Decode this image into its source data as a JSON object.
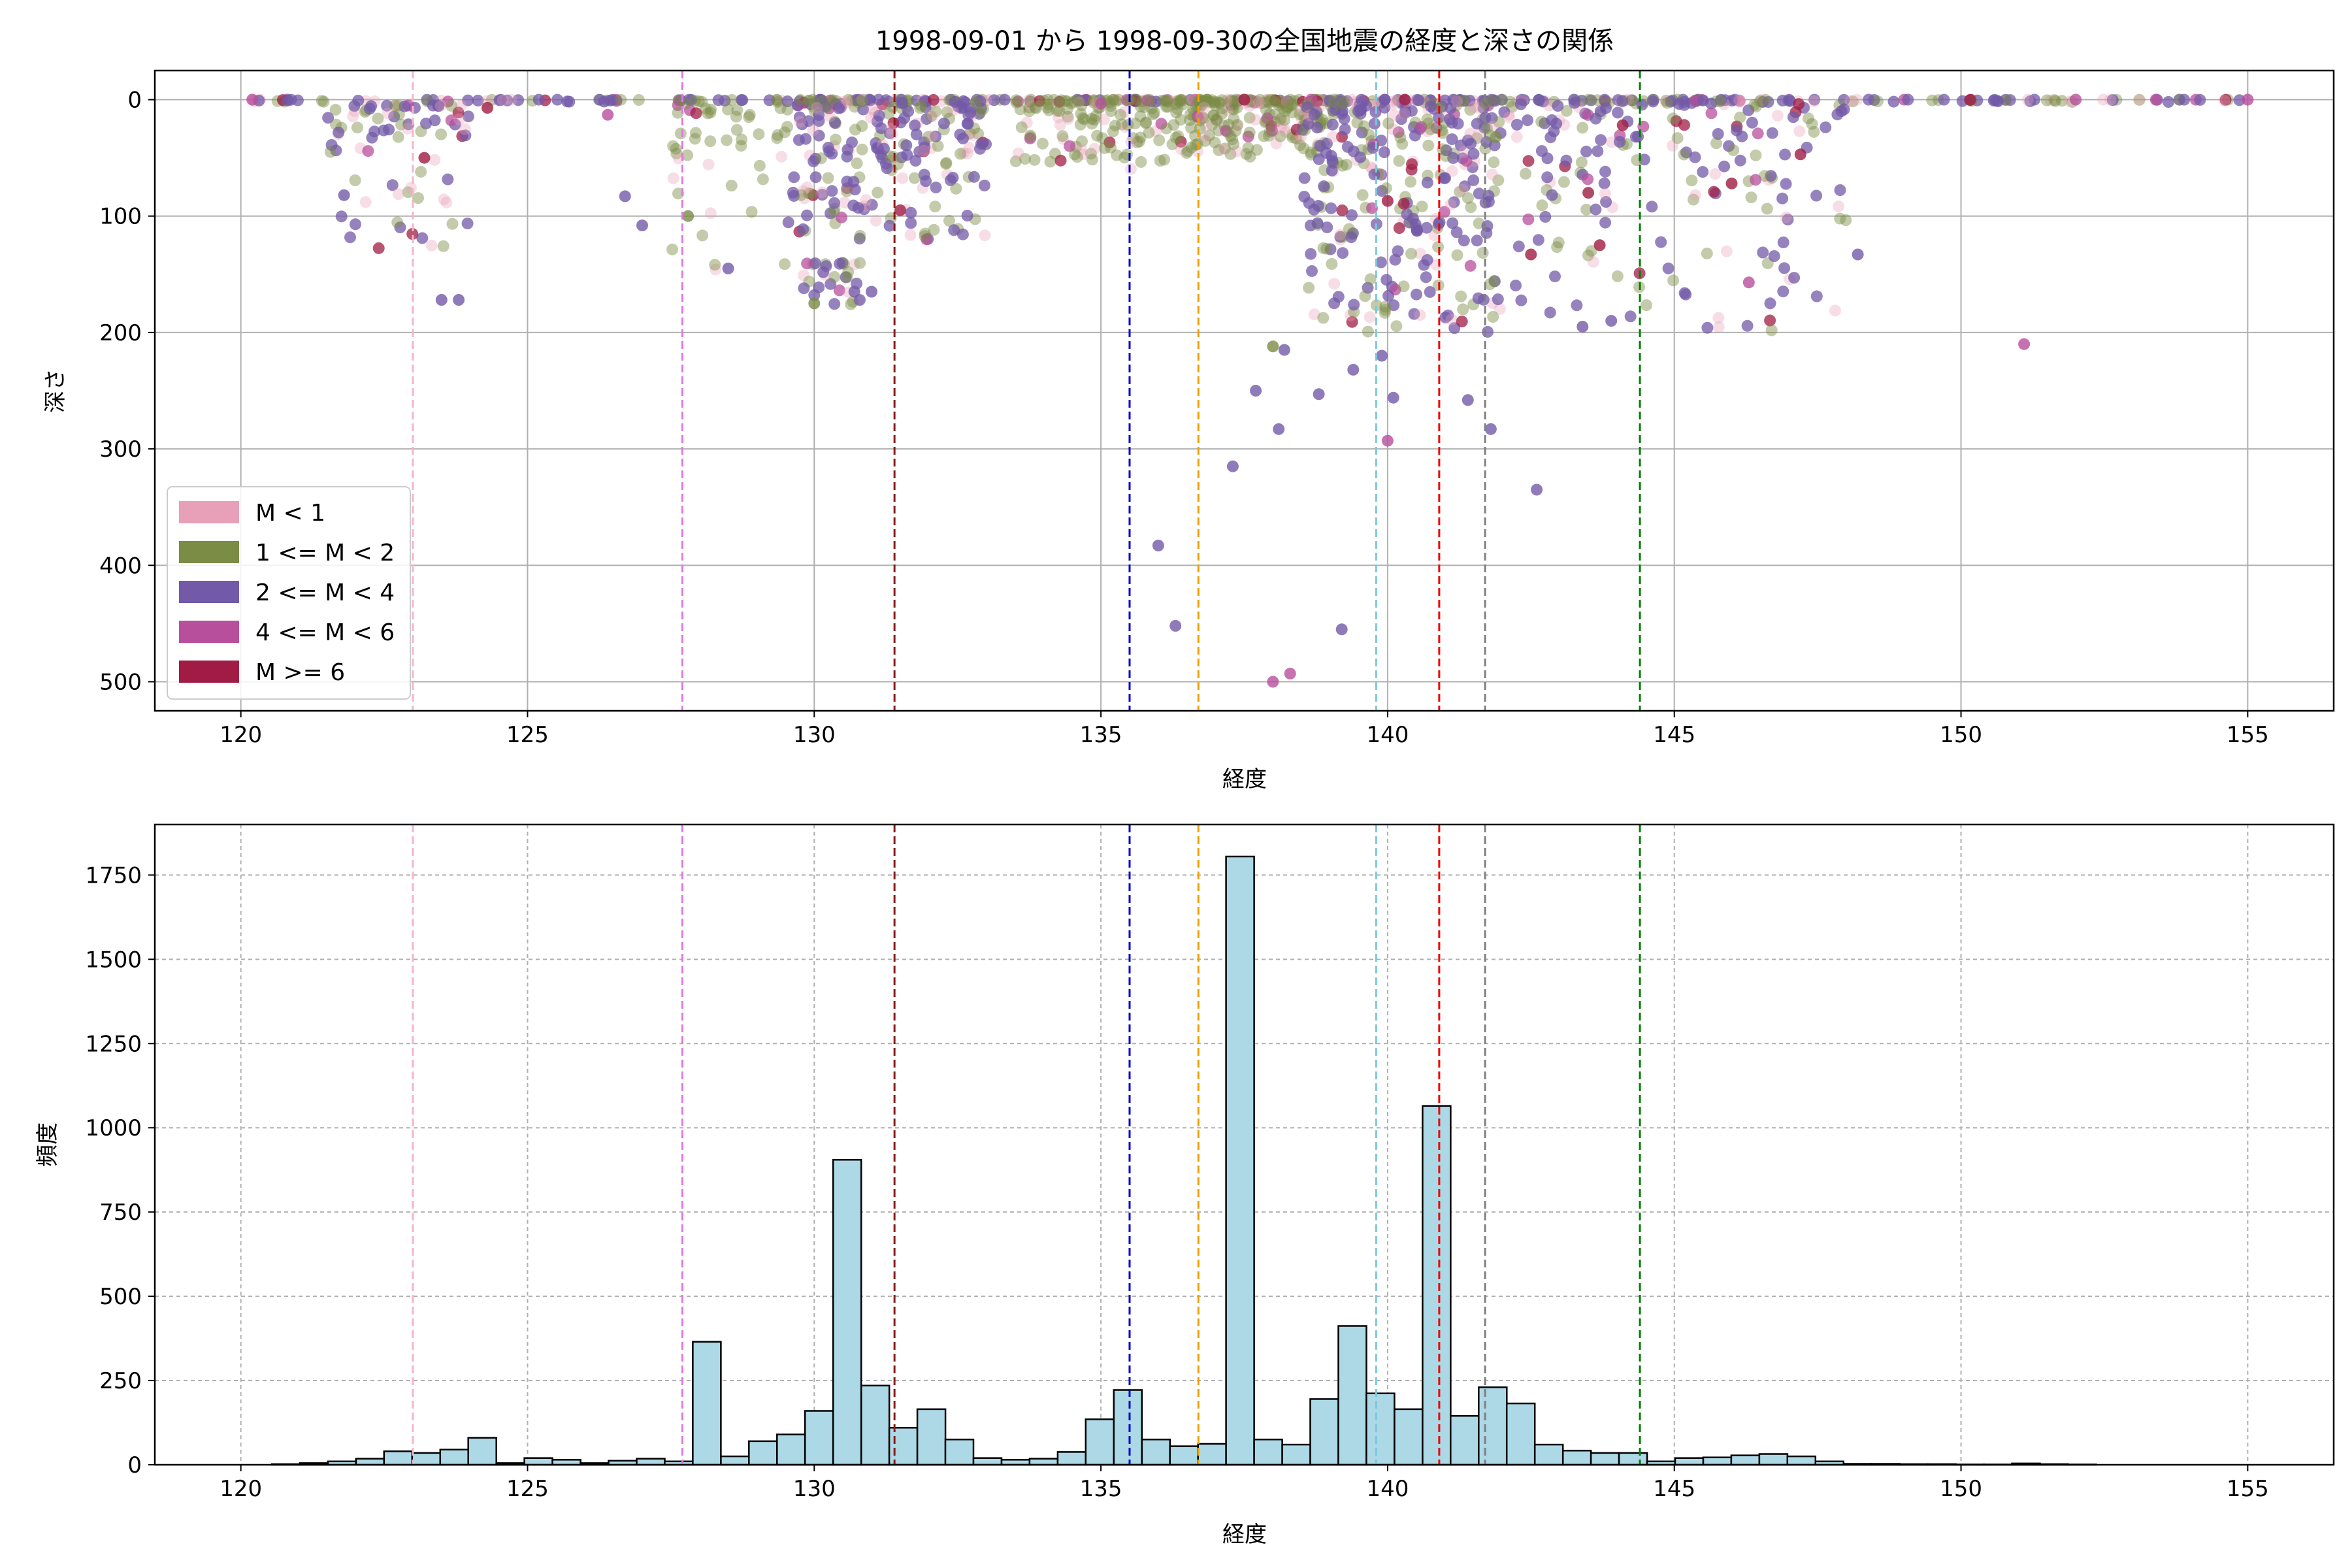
{
  "title": "1998-09-01 から 1998-09-30の全国地震の経度と深さの関係",
  "chart_data": [
    {
      "type": "scatter",
      "xlabel": "経度",
      "ylabel": "深さ",
      "xlim": [
        118.5,
        156.5
      ],
      "ylim": [
        525,
        -25
      ],
      "y_inverted": true,
      "xticks": [
        120,
        125,
        130,
        135,
        140,
        145,
        150,
        155
      ],
      "yticks": [
        0,
        100,
        200,
        300,
        400,
        500
      ],
      "grid": true,
      "legend_position": "lower-left",
      "legend": [
        {
          "label": "M < 1",
          "color": "#e8a0b8"
        },
        {
          "label": "1 <= M < 2",
          "color": "#7b8c45"
        },
        {
          "label": "2 <= M < 4",
          "color": "#735aa8"
        },
        {
          "label": "4 <= M < 6",
          "color": "#b84f9c"
        },
        {
          "label": "M >= 6",
          "color": "#a01c44"
        }
      ],
      "reference_lines": [
        {
          "x": 123.0,
          "color": "#f4b6c8"
        },
        {
          "x": 127.7,
          "color": "#e377e3"
        },
        {
          "x": 131.4,
          "color": "#8b1a1a"
        },
        {
          "x": 135.5,
          "color": "#0000cc"
        },
        {
          "x": 136.7,
          "color": "#f0a000"
        },
        {
          "x": 139.8,
          "color": "#7ac8e0"
        },
        {
          "x": 140.9,
          "color": "#ee0000"
        },
        {
          "x": 141.7,
          "color": "#808080"
        },
        {
          "x": 144.4,
          "color": "#008000"
        }
      ],
      "clusters": [
        {
          "x_range": [
            120.1,
            155.0
          ],
          "depth_range": [
            0,
            2
          ],
          "count": 260,
          "magnitude_class": 2
        },
        {
          "x_range": [
            121.5,
            124.0
          ],
          "depth_range": [
            5,
            130
          ],
          "count": 80,
          "magnitude_class": 2
        },
        {
          "x_range": [
            127.5,
            129.5
          ],
          "depth_range": [
            0,
            150
          ],
          "count": 50,
          "magnitude_class": 1
        },
        {
          "x_range": [
            129.5,
            133.0
          ],
          "depth_range": [
            0,
            120
          ],
          "count": 260,
          "magnitude_class": 2
        },
        {
          "x_range": [
            129.8,
            130.8
          ],
          "depth_range": [
            140,
            180
          ],
          "count": 30,
          "magnitude_class": 2
        },
        {
          "x_range": [
            133.5,
            136.5
          ],
          "depth_range": [
            0,
            60
          ],
          "count": 150,
          "magnitude_class": 1
        },
        {
          "x_range": [
            136.5,
            139.0
          ],
          "depth_range": [
            0,
            50
          ],
          "count": 200,
          "magnitude_class": 1
        },
        {
          "x_range": [
            138.5,
            142.0
          ],
          "depth_range": [
            0,
            200
          ],
          "count": 360,
          "magnitude_class": 2
        },
        {
          "x_range": [
            142.0,
            148.0
          ],
          "depth_range": [
            0,
            200
          ],
          "count": 200,
          "magnitude_class": 2
        }
      ],
      "points": [
        {
          "x": 121.8,
          "y": 82,
          "m": 2
        },
        {
          "x": 123.5,
          "y": 172,
          "m": 2
        },
        {
          "x": 123.8,
          "y": 172,
          "m": 2
        },
        {
          "x": 126.7,
          "y": 83,
          "m": 2
        },
        {
          "x": 127.0,
          "y": 108,
          "m": 2
        },
        {
          "x": 127.8,
          "y": 100,
          "m": 1
        },
        {
          "x": 128.5,
          "y": 145,
          "m": 2
        },
        {
          "x": 130.0,
          "y": 175,
          "m": 1
        },
        {
          "x": 130.7,
          "y": 165,
          "m": 2
        },
        {
          "x": 131.0,
          "y": 165,
          "m": 2
        },
        {
          "x": 136.0,
          "y": 383,
          "m": 2
        },
        {
          "x": 136.3,
          "y": 452,
          "m": 2
        },
        {
          "x": 137.3,
          "y": 315,
          "m": 2
        },
        {
          "x": 137.7,
          "y": 250,
          "m": 2
        },
        {
          "x": 138.0,
          "y": 212,
          "m": 1
        },
        {
          "x": 138.1,
          "y": 283,
          "m": 2
        },
        {
          "x": 138.2,
          "y": 215,
          "m": 2
        },
        {
          "x": 138.0,
          "y": 500,
          "m": 3
        },
        {
          "x": 138.3,
          "y": 493,
          "m": 3
        },
        {
          "x": 138.8,
          "y": 253,
          "m": 2
        },
        {
          "x": 139.2,
          "y": 455,
          "m": 2
        },
        {
          "x": 139.4,
          "y": 232,
          "m": 2
        },
        {
          "x": 139.9,
          "y": 220,
          "m": 2
        },
        {
          "x": 140.1,
          "y": 256,
          "m": 2
        },
        {
          "x": 140.0,
          "y": 293,
          "m": 3
        },
        {
          "x": 141.4,
          "y": 258,
          "m": 2
        },
        {
          "x": 141.8,
          "y": 283,
          "m": 2
        },
        {
          "x": 142.6,
          "y": 335,
          "m": 2
        },
        {
          "x": 151.1,
          "y": 210,
          "m": 3
        },
        {
          "x": 146.3,
          "y": 157,
          "m": 3
        },
        {
          "x": 148.2,
          "y": 133,
          "m": 2
        },
        {
          "x": 143.4,
          "y": 195,
          "m": 2
        },
        {
          "x": 143.9,
          "y": 190,
          "m": 2
        },
        {
          "x": 142.5,
          "y": 133,
          "m": 4
        },
        {
          "x": 143.7,
          "y": 125,
          "m": 4
        },
        {
          "x": 140.0,
          "y": 87,
          "m": 4
        },
        {
          "x": 144.1,
          "y": 22,
          "m": 4
        },
        {
          "x": 146.0,
          "y": 72,
          "m": 4
        },
        {
          "x": 147.2,
          "y": 47,
          "m": 4
        },
        {
          "x": 123.2,
          "y": 50,
          "m": 4
        },
        {
          "x": 124.3,
          "y": 7,
          "m": 4
        },
        {
          "x": 131.5,
          "y": 95,
          "m": 4
        },
        {
          "x": 137.5,
          "y": 0,
          "m": 4
        },
        {
          "x": 140.3,
          "y": 0,
          "m": 4
        },
        {
          "x": 143.5,
          "y": 80,
          "m": 4
        },
        {
          "x": 126.4,
          "y": 13,
          "m": 3
        },
        {
          "x": 152.0,
          "y": 0,
          "m": 3
        },
        {
          "x": 153.4,
          "y": 0,
          "m": 3
        },
        {
          "x": 155.0,
          "y": 0,
          "m": 3
        },
        {
          "x": 120.2,
          "y": 0,
          "m": 3
        }
      ]
    },
    {
      "type": "bar",
      "subtype": "histogram",
      "xlabel": "経度",
      "ylabel": "頻度",
      "xlim": [
        118.5,
        156.5
      ],
      "ylim": [
        0,
        1900
      ],
      "xticks": [
        120,
        125,
        130,
        135,
        140,
        145,
        150,
        155
      ],
      "yticks": [
        0,
        250,
        500,
        750,
        1000,
        1250,
        1500,
        1750
      ],
      "grid": true,
      "bar_color": "#add8e6",
      "bin_start": 120.05,
      "bin_width": 0.4895,
      "counts": [
        0,
        2,
        5,
        10,
        18,
        40,
        35,
        45,
        80,
        5,
        20,
        15,
        5,
        12,
        18,
        10,
        365,
        25,
        70,
        90,
        160,
        905,
        235,
        110,
        165,
        75,
        20,
        15,
        18,
        38,
        135,
        222,
        75,
        55,
        62,
        1805,
        75,
        60,
        195,
        412,
        212,
        165,
        1065,
        145,
        230,
        182,
        60,
        42,
        35,
        35,
        10,
        20,
        22,
        28,
        32,
        25,
        10,
        3,
        3,
        2,
        2,
        1,
        1,
        4,
        2,
        1,
        0,
        0,
        0,
        0,
        0,
        0
      ],
      "reference_lines": [
        {
          "x": 123.0,
          "color": "#f4b6c8"
        },
        {
          "x": 127.7,
          "color": "#e377e3"
        },
        {
          "x": 131.4,
          "color": "#8b1a1a"
        },
        {
          "x": 135.5,
          "color": "#0000cc"
        },
        {
          "x": 136.7,
          "color": "#f0a000"
        },
        {
          "x": 139.8,
          "color": "#7ac8e0"
        },
        {
          "x": 140.9,
          "color": "#ee0000"
        },
        {
          "x": 141.7,
          "color": "#808080"
        },
        {
          "x": 144.4,
          "color": "#008000"
        }
      ]
    }
  ]
}
